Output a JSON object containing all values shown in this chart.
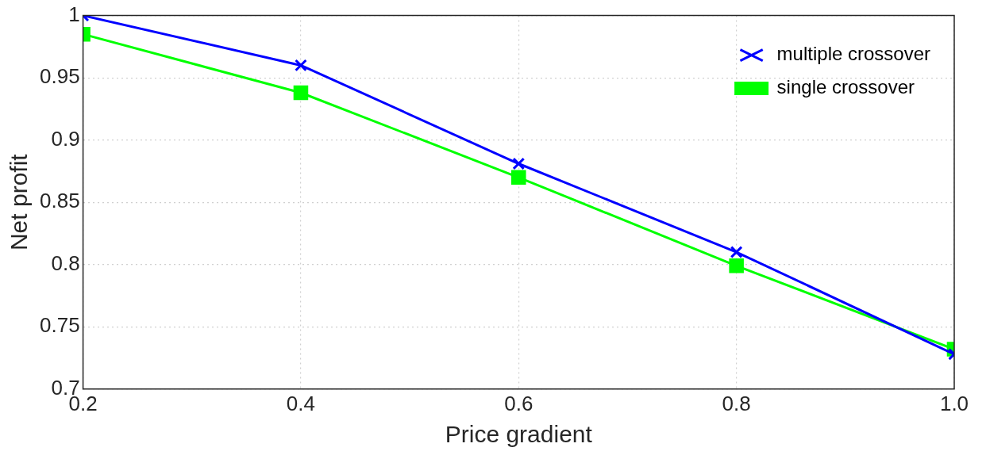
{
  "chart_data": {
    "type": "line",
    "xlabel": "Price gradient",
    "ylabel": "Net profit",
    "x": [
      0.2,
      0.4,
      0.6,
      0.8,
      1.0
    ],
    "series": [
      {
        "name": "multiple crossover",
        "color": "#0000ff",
        "marker": "cross",
        "values": [
          1.0,
          0.96,
          0.881,
          0.81,
          0.728
        ]
      },
      {
        "name": "single crossover",
        "color": "#00ff00",
        "marker": "square",
        "values": [
          0.985,
          0.938,
          0.87,
          0.799,
          0.732
        ]
      }
    ],
    "xlim": [
      0.2,
      1.0
    ],
    "xticks": [
      0.2,
      0.4,
      0.6,
      0.8,
      {
        "value": 1.0,
        "label": "1.0"
      }
    ],
    "ylim": [
      0.7,
      1
    ],
    "yticks": [
      0.7,
      0.75,
      0.8,
      0.85,
      0.9,
      0.95,
      1
    ],
    "grid": true,
    "legend": "top right",
    "line_style": "solid"
  }
}
